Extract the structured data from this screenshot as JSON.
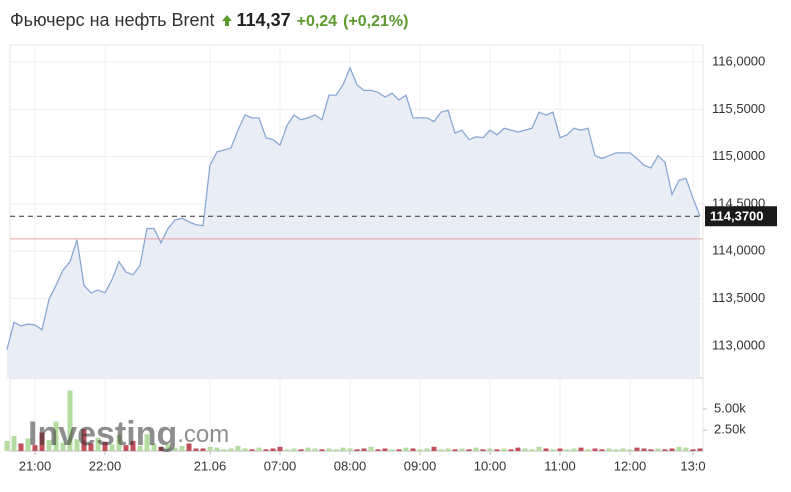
{
  "chart_data": {
    "type": "area",
    "title": "Фьючерс на нефть Brent",
    "price": "114,37",
    "change": "+0,24",
    "change_percent": "(+0,21%)",
    "watermark": "Investing",
    "watermark_suffix": ".com",
    "categories": [
      null,
      null,
      null,
      null,
      "21:00",
      null,
      null,
      null,
      null,
      null,
      null,
      null,
      null,
      null,
      "22:00",
      null,
      null,
      null,
      null,
      null,
      null,
      null,
      null,
      null,
      null,
      null,
      null,
      null,
      null,
      "21.06",
      null,
      null,
      null,
      null,
      null,
      null,
      null,
      null,
      null,
      "07:00",
      null,
      null,
      null,
      null,
      null,
      null,
      null,
      null,
      null,
      "08:00",
      null,
      null,
      null,
      null,
      null,
      null,
      null,
      null,
      null,
      "09:00",
      null,
      null,
      null,
      null,
      null,
      null,
      null,
      null,
      null,
      "10:00",
      null,
      null,
      null,
      null,
      null,
      null,
      null,
      null,
      null,
      "11:00",
      null,
      null,
      null,
      null,
      null,
      null,
      null,
      null,
      null,
      "12:00",
      null,
      null,
      null,
      null,
      null,
      null,
      null,
      null,
      "13:0",
      null
    ],
    "series": [
      {
        "color": "#8aa8d4",
        "fill": "#e8edf6",
        "values": [
          112.96,
          113.25,
          113.21,
          113.23,
          113.22,
          113.17,
          113.49,
          113.64,
          113.8,
          113.89,
          114.12,
          113.64,
          113.56,
          113.59,
          113.56,
          113.7,
          113.89,
          113.78,
          113.75,
          113.85,
          114.24,
          114.24,
          114.09,
          114.24,
          114.33,
          114.35,
          114.31,
          114.28,
          114.27,
          114.91,
          115.05,
          115.07,
          115.09,
          115.28,
          115.44,
          115.41,
          115.41,
          115.2,
          115.18,
          115.12,
          115.33,
          115.44,
          115.39,
          115.41,
          115.44,
          115.39,
          115.65,
          115.65,
          115.76,
          115.94,
          115.76,
          115.7,
          115.7,
          115.68,
          115.63,
          115.67,
          115.6,
          115.65,
          115.41,
          115.41,
          115.41,
          115.37,
          115.47,
          115.49,
          115.25,
          115.28,
          115.18,
          115.21,
          115.2,
          115.28,
          115.23,
          115.3,
          115.28,
          115.26,
          115.28,
          115.3,
          115.47,
          115.44,
          115.47,
          115.2,
          115.23,
          115.3,
          115.28,
          115.3,
          115.01,
          114.98,
          115.01,
          115.04,
          115.04,
          115.04,
          114.98,
          114.91,
          114.88,
          115.01,
          114.94,
          114.6,
          114.75,
          114.77,
          114.56,
          114.37
        ]
      }
    ],
    "ylim": [
      112.66,
      116.18
    ],
    "yticks": [
      {
        "value": 113,
        "label": "113,0000"
      },
      {
        "value": 113.5,
        "label": "113,5000"
      },
      {
        "value": 114,
        "label": "114,0000"
      },
      {
        "value": 114.5,
        "label": "114,5000"
      },
      {
        "value": 115,
        "label": "115,0000"
      },
      {
        "value": 115.5,
        "label": "115,5000"
      },
      {
        "value": 116,
        "label": "116,0000"
      }
    ],
    "current": {
      "value": 114.37,
      "label": "114,3700"
    },
    "prev_close": 114.13,
    "prev_close_color": "#e8a0a0",
    "volume": {
      "up_color": "#b5dca0",
      "down_color": "#c0505a",
      "ylim": [
        0,
        8700
      ],
      "yticks": [
        {
          "value": 2500,
          "label": "2.50k"
        },
        {
          "value": 5000,
          "label": "5.00k"
        }
      ],
      "values": [
        1200,
        1800,
        900,
        1500,
        700,
        2200,
        1300,
        3500,
        1000,
        7200,
        1400,
        2600,
        900,
        1600,
        1100,
        800,
        1900,
        700,
        1200,
        600,
        2000,
        900,
        500,
        800,
        400,
        600,
        900,
        300,
        300,
        500,
        400,
        200,
        300,
        600,
        300,
        200,
        400,
        200,
        300,
        500,
        200,
        300,
        200,
        400,
        300,
        200,
        300,
        200,
        400,
        300,
        200,
        300,
        500,
        200,
        300,
        200,
        200,
        400,
        300,
        200,
        300,
        500,
        200,
        300,
        200,
        300,
        200,
        400,
        200,
        300,
        200,
        300,
        200,
        400,
        300,
        200,
        500,
        300,
        200,
        300,
        200,
        300,
        400,
        200,
        300,
        200,
        300,
        200,
        300,
        200,
        400,
        300,
        200,
        300,
        200,
        300,
        500,
        400,
        200,
        300
      ]
    },
    "grid": true
  }
}
